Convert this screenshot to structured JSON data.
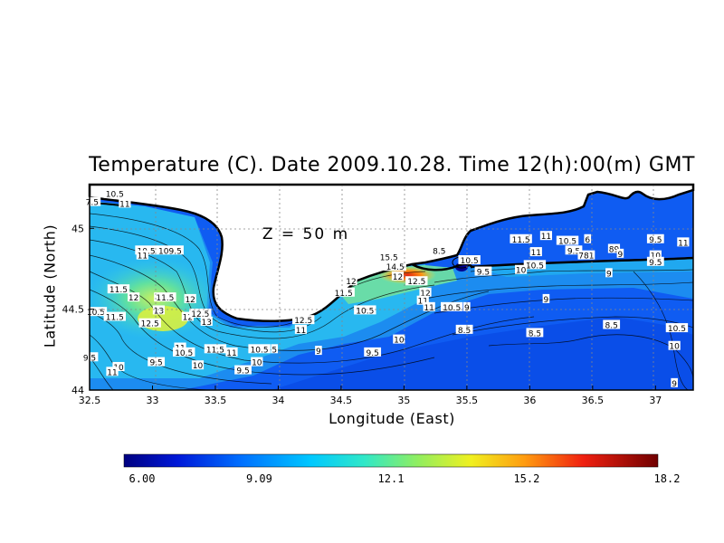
{
  "chart_data": {
    "type": "heatmap",
    "title": "Temperature (C). Date 2009.10.28. Time 12(h):00(m) GMT",
    "xlabel": "Longitude (East)",
    "ylabel": "Latitude (North)",
    "annotation": "Z = 50 m",
    "xlim": [
      32.5,
      37.3
    ],
    "ylim": [
      44.0,
      45.27
    ],
    "xticks": [
      "32.5",
      "33",
      "33.5",
      "34",
      "34.5",
      "35",
      "35.5",
      "36",
      "36.5",
      "37"
    ],
    "yticks": [
      "44",
      "44.5",
      "45"
    ],
    "grid": true,
    "colorbar": {
      "vmin": 6.0,
      "vmax": 18.2,
      "tick_labels": [
        "6.00",
        "9.09",
        "12.1",
        "15.2",
        "18.2"
      ],
      "tick_values": [
        6.0,
        9.09,
        12.1,
        15.2,
        18.2
      ]
    },
    "contour_labels": [
      {
        "lon": 32.7,
        "lat": 45.21,
        "text": "10.5"
      },
      {
        "lon": 32.52,
        "lat": 45.16,
        "text": "7.5"
      },
      {
        "lon": 32.78,
        "lat": 45.15,
        "text": "11"
      },
      {
        "lon": 32.95,
        "lat": 44.86,
        "text": "10.5"
      },
      {
        "lon": 32.92,
        "lat": 44.83,
        "text": "11"
      },
      {
        "lon": 33.14,
        "lat": 44.86,
        "text": "109.5"
      },
      {
        "lon": 32.73,
        "lat": 44.62,
        "text": "11.5"
      },
      {
        "lon": 32.85,
        "lat": 44.57,
        "text": "12"
      },
      {
        "lon": 33.1,
        "lat": 44.57,
        "text": "11.5"
      },
      {
        "lon": 33.3,
        "lat": 44.56,
        "text": "12"
      },
      {
        "lon": 32.55,
        "lat": 44.48,
        "text": "10.5"
      },
      {
        "lon": 32.7,
        "lat": 44.45,
        "text": "11.5"
      },
      {
        "lon": 32.98,
        "lat": 44.41,
        "text": "12.5"
      },
      {
        "lon": 33.05,
        "lat": 44.49,
        "text": "13"
      },
      {
        "lon": 33.28,
        "lat": 44.45,
        "text": "12"
      },
      {
        "lon": 33.38,
        "lat": 44.47,
        "text": "12.5"
      },
      {
        "lon": 33.43,
        "lat": 44.42,
        "text": "13"
      },
      {
        "lon": 33.22,
        "lat": 44.26,
        "text": "11"
      },
      {
        "lon": 33.25,
        "lat": 44.23,
        "text": "10.5"
      },
      {
        "lon": 33.5,
        "lat": 44.25,
        "text": "11.5"
      },
      {
        "lon": 33.63,
        "lat": 44.23,
        "text": "11"
      },
      {
        "lon": 32.5,
        "lat": 44.2,
        "text": "9.5"
      },
      {
        "lon": 32.73,
        "lat": 44.14,
        "text": "10"
      },
      {
        "lon": 32.68,
        "lat": 44.11,
        "text": "11"
      },
      {
        "lon": 33.03,
        "lat": 44.17,
        "text": "9.5"
      },
      {
        "lon": 33.36,
        "lat": 44.15,
        "text": "10"
      },
      {
        "lon": 33.85,
        "lat": 44.25,
        "text": "10.5"
      },
      {
        "lon": 33.97,
        "lat": 44.25,
        "text": "5"
      },
      {
        "lon": 33.83,
        "lat": 44.17,
        "text": "10"
      },
      {
        "lon": 33.72,
        "lat": 44.12,
        "text": "9.5"
      },
      {
        "lon": 34.2,
        "lat": 44.43,
        "text": "12.5"
      },
      {
        "lon": 34.18,
        "lat": 44.37,
        "text": "11"
      },
      {
        "lon": 34.32,
        "lat": 44.24,
        "text": "9"
      },
      {
        "lon": 34.52,
        "lat": 44.6,
        "text": "11.5"
      },
      {
        "lon": 34.58,
        "lat": 44.67,
        "text": "12"
      },
      {
        "lon": 34.69,
        "lat": 44.49,
        "text": "10.5"
      },
      {
        "lon": 34.88,
        "lat": 44.82,
        "text": "15.5"
      },
      {
        "lon": 34.93,
        "lat": 44.76,
        "text": "14.5"
      },
      {
        "lon": 34.95,
        "lat": 44.7,
        "text": "12"
      },
      {
        "lon": 35.1,
        "lat": 44.67,
        "text": "12.5"
      },
      {
        "lon": 35.17,
        "lat": 44.6,
        "text": "12"
      },
      {
        "lon": 35.15,
        "lat": 44.55,
        "text": "11"
      },
      {
        "lon": 35.2,
        "lat": 44.51,
        "text": "11"
      },
      {
        "lon": 35.38,
        "lat": 44.51,
        "text": "10.5"
      },
      {
        "lon": 35.5,
        "lat": 44.51,
        "text": "9"
      },
      {
        "lon": 34.96,
        "lat": 44.31,
        "text": "10"
      },
      {
        "lon": 34.75,
        "lat": 44.23,
        "text": "9.5"
      },
      {
        "lon": 35.48,
        "lat": 44.37,
        "text": "8.5"
      },
      {
        "lon": 35.28,
        "lat": 44.86,
        "text": "8.5"
      },
      {
        "lon": 35.52,
        "lat": 44.8,
        "text": "10.5"
      },
      {
        "lon": 35.63,
        "lat": 44.73,
        "text": "9.5"
      },
      {
        "lon": 35.93,
        "lat": 44.93,
        "text": "11.5"
      },
      {
        "lon": 36.13,
        "lat": 44.95,
        "text": "11"
      },
      {
        "lon": 36.3,
        "lat": 44.92,
        "text": "10.5"
      },
      {
        "lon": 36.46,
        "lat": 44.93,
        "text": "6"
      },
      {
        "lon": 36.05,
        "lat": 44.85,
        "text": "11"
      },
      {
        "lon": 36.04,
        "lat": 44.77,
        "text": "10.5"
      },
      {
        "lon": 35.93,
        "lat": 44.74,
        "text": "10"
      },
      {
        "lon": 36.35,
        "lat": 44.86,
        "text": "9.5"
      },
      {
        "lon": 36.45,
        "lat": 44.83,
        "text": "781"
      },
      {
        "lon": 36.67,
        "lat": 44.87,
        "text": "89"
      },
      {
        "lon": 36.72,
        "lat": 44.84,
        "text": "9"
      },
      {
        "lon": 36.63,
        "lat": 44.72,
        "text": "9"
      },
      {
        "lon": 36.13,
        "lat": 44.56,
        "text": "9"
      },
      {
        "lon": 36.04,
        "lat": 44.35,
        "text": "8.5"
      },
      {
        "lon": 36.65,
        "lat": 44.4,
        "text": "8.5"
      },
      {
        "lon": 37.0,
        "lat": 44.93,
        "text": "9.5"
      },
      {
        "lon": 37.0,
        "lat": 44.83,
        "text": "10"
      },
      {
        "lon": 37.0,
        "lat": 44.79,
        "text": "9.5"
      },
      {
        "lon": 37.22,
        "lat": 44.91,
        "text": "11"
      },
      {
        "lon": 37.17,
        "lat": 44.38,
        "text": "10.5"
      },
      {
        "lon": 37.15,
        "lat": 44.27,
        "text": "10"
      },
      {
        "lon": 37.15,
        "lat": 44.04,
        "text": "9"
      }
    ]
  }
}
